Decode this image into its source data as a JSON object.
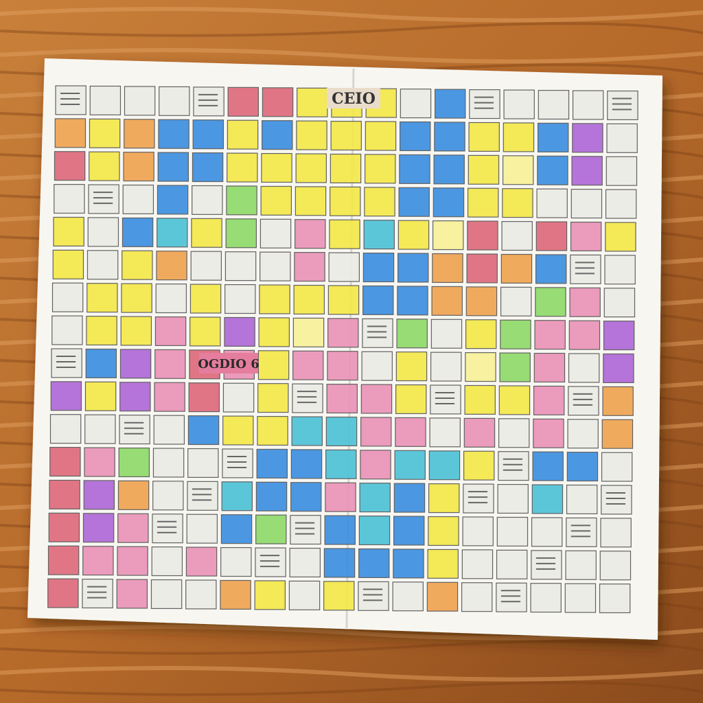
{
  "labels": [
    "CEIO",
    "OGDIO 6"
  ]
}
